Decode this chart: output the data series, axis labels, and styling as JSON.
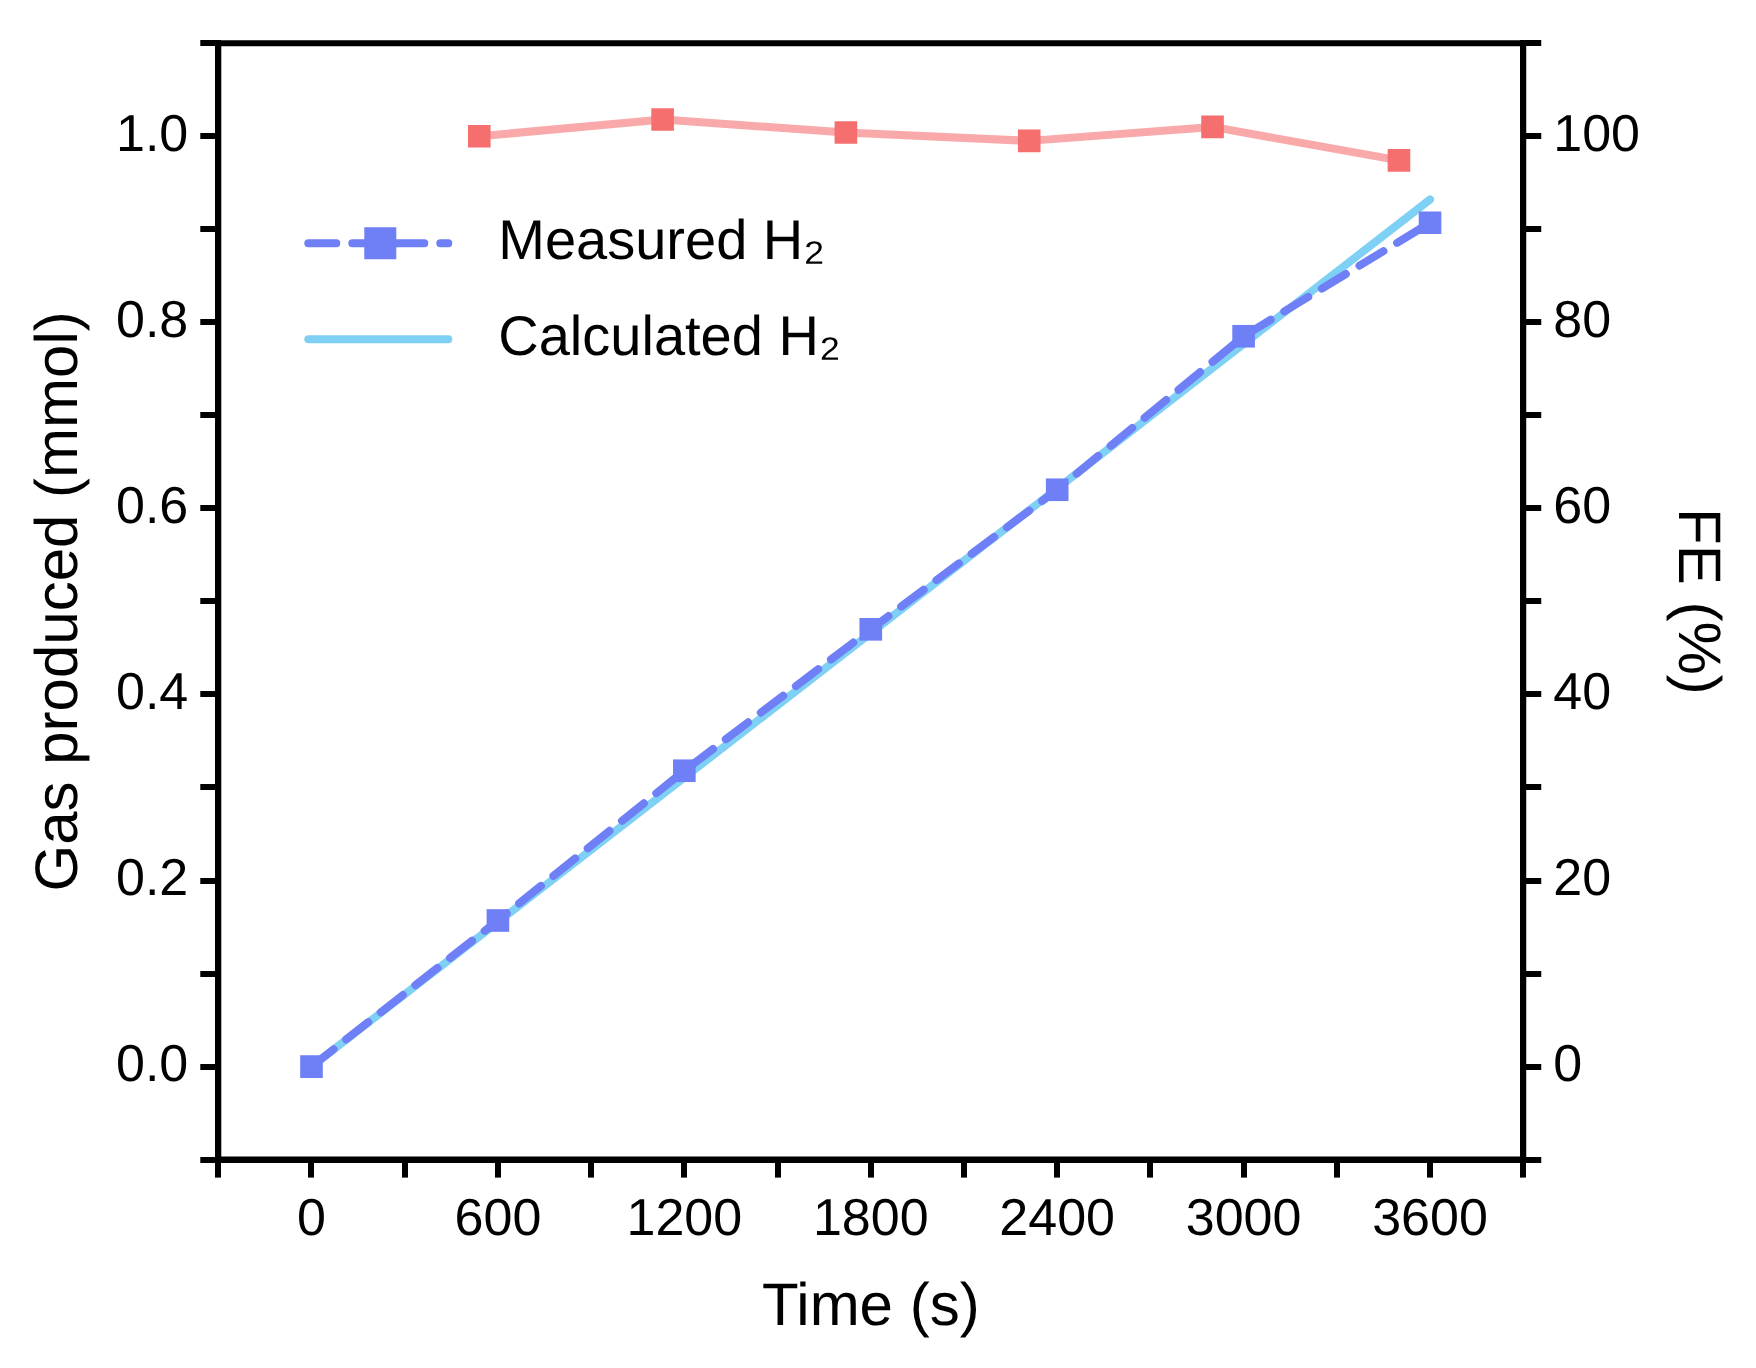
{
  "chart_data": {
    "type": "line",
    "xlabel": "Time (s)",
    "ylabel": "Gas produced (mmol)",
    "y2label": "FE (%)",
    "xlim": [
      -300,
      3900
    ],
    "xticks": [
      {
        "value": -300,
        "label": null
      },
      0,
      {
        "value": 300,
        "label": null
      },
      600,
      {
        "value": 900,
        "label": null
      },
      1200,
      {
        "value": 1500,
        "label": null
      },
      1800,
      {
        "value": 2100,
        "label": null
      },
      2400,
      {
        "value": 2700,
        "label": null
      },
      3000,
      {
        "value": 3300,
        "label": null
      },
      3600,
      {
        "value": 3900,
        "label": null
      }
    ],
    "ylim": [
      -0.1,
      1.1
    ],
    "yticks": [
      {
        "value": -0.1,
        "label": null
      },
      {
        "value": 0,
        "label": "0.0"
      },
      {
        "value": 0.1,
        "label": null
      },
      0.2,
      {
        "value": 0.3,
        "label": null
      },
      0.4,
      {
        "value": 0.5,
        "label": null
      },
      0.6,
      {
        "value": 0.7,
        "label": null
      },
      0.8,
      {
        "value": 0.9,
        "label": null
      },
      {
        "value": 1,
        "label": "1.0"
      },
      {
        "value": 1.1,
        "label": null
      }
    ],
    "y2lim": [
      -10,
      110
    ],
    "y2ticks": [
      {
        "value": -10,
        "label": null
      },
      0,
      {
        "value": 10,
        "label": null
      },
      20,
      {
        "value": 30,
        "label": null
      },
      40,
      {
        "value": 50,
        "label": null
      },
      60,
      {
        "value": 70,
        "label": null
      },
      80,
      {
        "value": 90,
        "label": null
      },
      100,
      {
        "value": 110,
        "label": null
      }
    ],
    "grid": false,
    "legend": "top left",
    "marker": "square",
    "series": [
      {
        "name": "Measured H₂",
        "color": "#6f7ff5",
        "line_style": "dashed",
        "x": [
          0,
          600,
          1200,
          1800,
          2400,
          3000,
          3600
        ],
        "values": [
          0,
          0.157,
          0.318,
          0.47,
          0.62,
          0.785,
          0.907
        ]
      },
      {
        "name": "Calculated H₂",
        "color": "#7fd0f5",
        "line_style": "solid",
        "marker": "none",
        "x": [
          0,
          3600
        ],
        "values": [
          0,
          0.932
        ]
      },
      {
        "color": "#f56f6f",
        "line_style": "solid",
        "axis": "y2",
        "x": [
          540,
          1130,
          1720,
          2310,
          2900,
          3500
        ],
        "values": [
          100,
          101.8,
          100.4,
          99.5,
          101,
          97.4
        ]
      }
    ]
  }
}
